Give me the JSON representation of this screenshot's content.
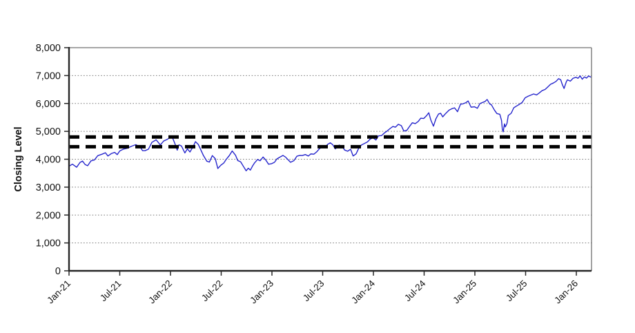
{
  "figure": {
    "background": "#ffffff",
    "title": ""
  },
  "chart_data": {
    "type": "line",
    "title": "",
    "xlabel": "",
    "ylabel": "Closing Level",
    "ylim": [
      0,
      8000
    ],
    "y_ticks": [
      0,
      1000,
      2000,
      3000,
      4000,
      5000,
      6000,
      7000,
      8000
    ],
    "y_tick_labels": [
      "0",
      "1,000",
      "2,000",
      "3,000",
      "4,000",
      "5,000",
      "6,000",
      "7,000",
      "8,000"
    ],
    "x_tick_labels": [
      "Jan-21",
      "Jul-21",
      "Jan-22",
      "Jul-22",
      "Jan-23",
      "Jul-23",
      "Jan-24",
      "Jul-24",
      "Jan-25",
      "Jul-25",
      "Jan-26"
    ],
    "x_tick_interval_months": 6,
    "x_unit": "months since Jan-2021",
    "x_data_end_months": 61.7,
    "grid": "horizontal-dotted",
    "legend_position": "none",
    "colors": {
      "series_line": "#2424cc",
      "reference_line": "#000000",
      "gridline": "#7a7a7a",
      "axis": "#262626",
      "border": "#707070",
      "tick_text": "#111111"
    },
    "reference_lines": [
      {
        "name": "upper-band",
        "value": 4800,
        "style": "dashed",
        "color": "#000000"
      },
      {
        "name": "lower-band",
        "value": 4450,
        "style": "dashed",
        "color": "#000000"
      }
    ],
    "series": [
      {
        "name": "index-closing-level",
        "color": "#2424cc",
        "points": [
          [
            0,
            3748
          ],
          [
            0.4,
            3825
          ],
          [
            0.9,
            3714
          ],
          [
            1.3,
            3886
          ],
          [
            1.6,
            3935
          ],
          [
            1.9,
            3811
          ],
          [
            2.2,
            3768
          ],
          [
            2.6,
            3943
          ],
          [
            3.0,
            3973
          ],
          [
            3.4,
            4128
          ],
          [
            3.9,
            4181
          ],
          [
            4.3,
            4233
          ],
          [
            4.6,
            4116
          ],
          [
            5.0,
            4204
          ],
          [
            5.4,
            4247
          ],
          [
            5.7,
            4166
          ],
          [
            6.0,
            4298
          ],
          [
            6.4,
            4360
          ],
          [
            6.9,
            4395
          ],
          [
            7.4,
            4468
          ],
          [
            7.9,
            4523
          ],
          [
            8.4,
            4444
          ],
          [
            8.7,
            4307
          ],
          [
            9.0,
            4308
          ],
          [
            9.4,
            4363
          ],
          [
            9.8,
            4605
          ],
          [
            10.3,
            4697
          ],
          [
            10.8,
            4513
          ],
          [
            11.2,
            4655
          ],
          [
            11.6,
            4710
          ],
          [
            11.9,
            4766
          ],
          [
            12.2,
            4797
          ],
          [
            12.5,
            4578
          ],
          [
            12.8,
            4326
          ],
          [
            13.0,
            4516
          ],
          [
            13.3,
            4475
          ],
          [
            13.7,
            4226
          ],
          [
            14.0,
            4374
          ],
          [
            14.3,
            4260
          ],
          [
            14.7,
            4463
          ],
          [
            14.95,
            4631
          ],
          [
            15.3,
            4525
          ],
          [
            15.9,
            4132
          ],
          [
            16.3,
            3930
          ],
          [
            16.6,
            3900
          ],
          [
            16.95,
            4132
          ],
          [
            17.3,
            4018
          ],
          [
            17.6,
            3667
          ],
          [
            17.95,
            3785
          ],
          [
            18.3,
            3864
          ],
          [
            18.6,
            3999
          ],
          [
            18.95,
            4130
          ],
          [
            19.3,
            4297
          ],
          [
            19.7,
            4140
          ],
          [
            19.95,
            3955
          ],
          [
            20.3,
            3908
          ],
          [
            20.6,
            3757
          ],
          [
            20.95,
            3586
          ],
          [
            21.2,
            3678
          ],
          [
            21.45,
            3612
          ],
          [
            21.7,
            3754
          ],
          [
            21.95,
            3872
          ],
          [
            22.3,
            3992
          ],
          [
            22.6,
            3946
          ],
          [
            22.95,
            4080
          ],
          [
            23.3,
            3960
          ],
          [
            23.6,
            3822
          ],
          [
            23.95,
            3840
          ],
          [
            24.3,
            3892
          ],
          [
            24.6,
            4016
          ],
          [
            24.95,
            4077
          ],
          [
            25.3,
            4137
          ],
          [
            25.6,
            4079
          ],
          [
            25.95,
            3970
          ],
          [
            26.2,
            3892
          ],
          [
            26.6,
            3951
          ],
          [
            26.95,
            4109
          ],
          [
            27.3,
            4138
          ],
          [
            27.6,
            4134
          ],
          [
            27.95,
            4169
          ],
          [
            28.3,
            4116
          ],
          [
            28.6,
            4192
          ],
          [
            28.95,
            4180
          ],
          [
            29.3,
            4267
          ],
          [
            29.6,
            4373
          ],
          [
            29.95,
            4450
          ],
          [
            30.3,
            4446
          ],
          [
            30.6,
            4536
          ],
          [
            30.9,
            4589
          ],
          [
            31.2,
            4518
          ],
          [
            31.5,
            4370
          ],
          [
            31.95,
            4508
          ],
          [
            32.3,
            4466
          ],
          [
            32.6,
            4330
          ],
          [
            32.95,
            4288
          ],
          [
            33.3,
            4358
          ],
          [
            33.6,
            4117
          ],
          [
            33.95,
            4194
          ],
          [
            34.3,
            4415
          ],
          [
            34.6,
            4514
          ],
          [
            34.95,
            4568
          ],
          [
            35.3,
            4622
          ],
          [
            35.6,
            4719
          ],
          [
            35.95,
            4770
          ],
          [
            36.3,
            4690
          ],
          [
            36.6,
            4840
          ],
          [
            36.95,
            4846
          ],
          [
            37.3,
            4943
          ],
          [
            37.6,
            5006
          ],
          [
            37.95,
            5096
          ],
          [
            38.3,
            5175
          ],
          [
            38.6,
            5150
          ],
          [
            38.95,
            5254
          ],
          [
            39.3,
            5205
          ],
          [
            39.6,
            5012
          ],
          [
            39.95,
            5036
          ],
          [
            40.3,
            5188
          ],
          [
            40.6,
            5308
          ],
          [
            40.95,
            5278
          ],
          [
            41.3,
            5354
          ],
          [
            41.6,
            5473
          ],
          [
            41.95,
            5460
          ],
          [
            42.3,
            5567
          ],
          [
            42.55,
            5667
          ],
          [
            42.8,
            5399
          ],
          [
            43.1,
            5186
          ],
          [
            43.4,
            5455
          ],
          [
            43.7,
            5620
          ],
          [
            43.95,
            5648
          ],
          [
            44.2,
            5520
          ],
          [
            44.5,
            5626
          ],
          [
            44.95,
            5762
          ],
          [
            45.3,
            5815
          ],
          [
            45.6,
            5842
          ],
          [
            45.95,
            5705
          ],
          [
            46.3,
            5973
          ],
          [
            46.6,
            5987
          ],
          [
            46.95,
            6032
          ],
          [
            47.2,
            6090
          ],
          [
            47.55,
            5867
          ],
          [
            47.95,
            5882
          ],
          [
            48.3,
            5827
          ],
          [
            48.6,
            5996
          ],
          [
            48.95,
            6041
          ],
          [
            49.2,
            6068
          ],
          [
            49.45,
            6144
          ],
          [
            49.75,
            5983
          ],
          [
            49.95,
            5955
          ],
          [
            50.3,
            5770
          ],
          [
            50.6,
            5639
          ],
          [
            50.95,
            5612
          ],
          [
            51.15,
            5396
          ],
          [
            51.25,
            5074
          ],
          [
            51.35,
            4983
          ],
          [
            51.5,
            5268
          ],
          [
            51.6,
            5158
          ],
          [
            51.8,
            5287
          ],
          [
            51.95,
            5569
          ],
          [
            52.3,
            5650
          ],
          [
            52.6,
            5845
          ],
          [
            52.95,
            5912
          ],
          [
            53.3,
            5976
          ],
          [
            53.6,
            6039
          ],
          [
            53.95,
            6205
          ],
          [
            54.3,
            6259
          ],
          [
            54.6,
            6297
          ],
          [
            54.95,
            6340
          ],
          [
            55.3,
            6305
          ],
          [
            55.6,
            6373
          ],
          [
            55.95,
            6460
          ],
          [
            56.3,
            6502
          ],
          [
            56.6,
            6584
          ],
          [
            56.95,
            6688
          ],
          [
            57.3,
            6735
          ],
          [
            57.6,
            6791
          ],
          [
            57.9,
            6890
          ],
          [
            58.15,
            6852
          ],
          [
            58.35,
            6672
          ],
          [
            58.55,
            6538
          ],
          [
            58.8,
            6765
          ],
          [
            58.95,
            6849
          ],
          [
            59.3,
            6800
          ],
          [
            59.6,
            6901
          ],
          [
            59.95,
            6940
          ],
          [
            60.2,
            6902
          ],
          [
            60.45,
            6988
          ],
          [
            60.7,
            6870
          ],
          [
            60.95,
            6952
          ],
          [
            61.2,
            6910
          ],
          [
            61.45,
            6984
          ],
          [
            61.7,
            6946
          ]
        ]
      }
    ]
  }
}
